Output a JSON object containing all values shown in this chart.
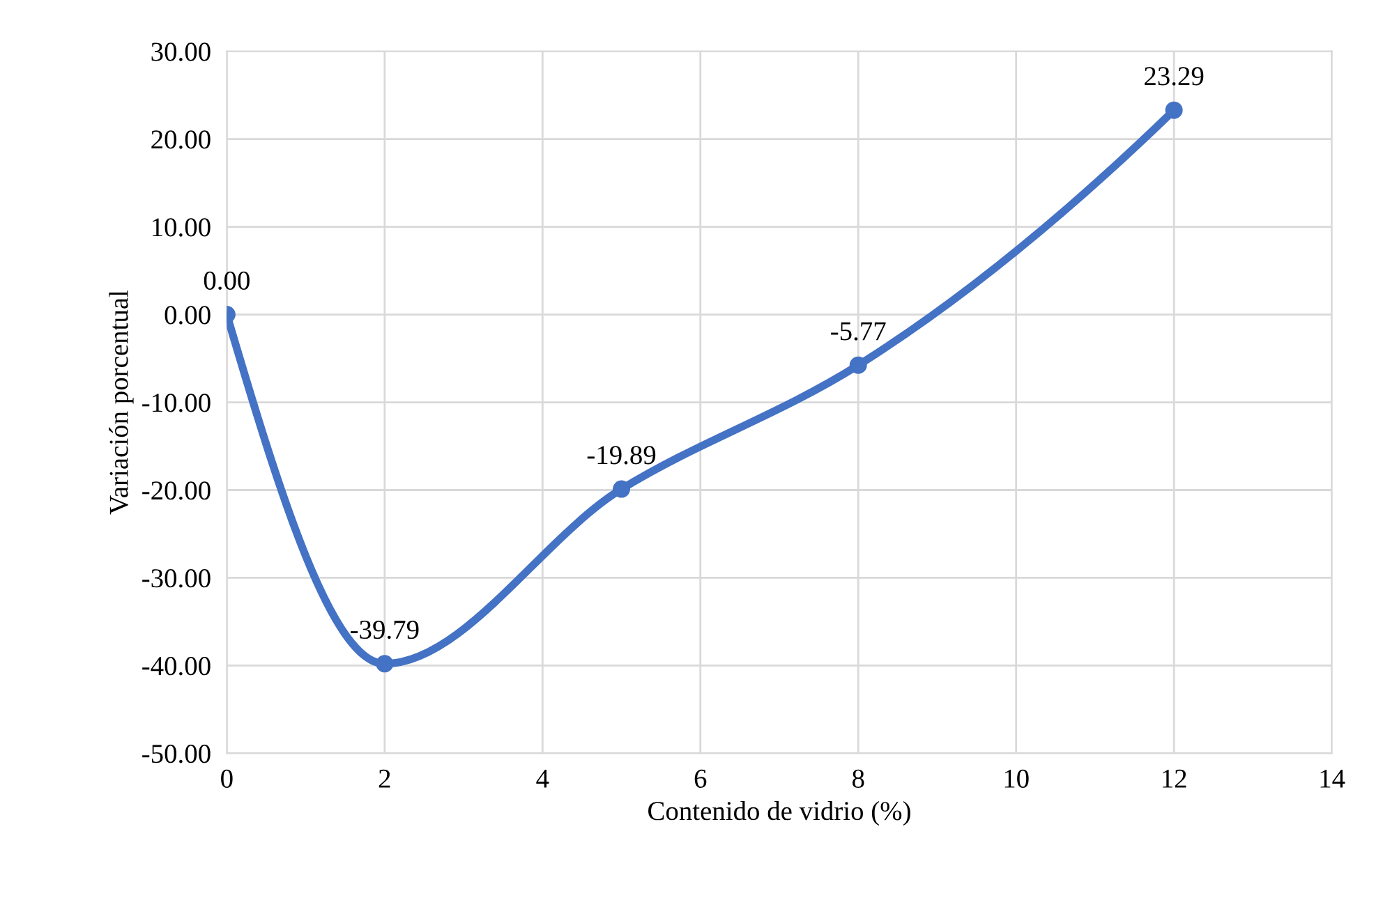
{
  "chart_data": {
    "type": "line",
    "xlabel": "Contenido de vidrio (%)",
    "ylabel": "Variación porcentual",
    "x": [
      0,
      2,
      5,
      8,
      12
    ],
    "series": [
      {
        "color": "#4472c4",
        "values": [
          0.0,
          -39.79,
          -19.89,
          -5.77,
          23.29
        ],
        "value_labels": [
          "0.00",
          "-39.79",
          "-19.89",
          "-5.77",
          "23.29"
        ]
      }
    ],
    "xlim": [
      0,
      14
    ],
    "xticks": [
      0,
      2,
      4,
      6,
      8,
      10,
      12,
      14
    ],
    "ylim": [
      -50,
      30
    ],
    "yticks": [
      {
        "value": -50,
        "label": "-50.00"
      },
      {
        "value": -40,
        "label": "-40.00"
      },
      {
        "value": -30,
        "label": "-30.00"
      },
      {
        "value": -20,
        "label": "-20.00"
      },
      {
        "value": -10,
        "label": "-10.00"
      },
      {
        "value": 0,
        "label": "0.00"
      },
      {
        "value": 10,
        "label": "10.00"
      },
      {
        "value": 20,
        "label": "20.00"
      },
      {
        "value": 30,
        "label": "30.00"
      }
    ],
    "grid": true,
    "marker": "circle",
    "line_style": "solid"
  }
}
